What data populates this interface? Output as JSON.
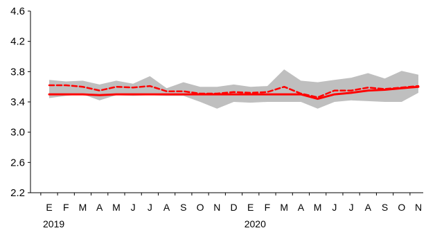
{
  "chart_data": {
    "type": "line",
    "title": "",
    "xlabel": "",
    "ylabel": "",
    "ylim": [
      2.2,
      4.6
    ],
    "yticks": [
      "2.2",
      "2.6",
      "3.0",
      "3.4",
      "3.8",
      "4.2",
      "4.6"
    ],
    "categories": [
      "E",
      "F",
      "M",
      "A",
      "M",
      "J",
      "J",
      "A",
      "S",
      "O",
      "N",
      "D",
      "E",
      "F",
      "M",
      "A",
      "M",
      "J",
      "J",
      "A",
      "S",
      "O",
      "N"
    ],
    "year_labels": [
      {
        "label": "2019",
        "category_index": 0
      },
      {
        "label": "2020",
        "category_index": 12
      }
    ],
    "grid": false,
    "legend": "none",
    "band": {
      "upper": [
        3.69,
        3.67,
        3.68,
        3.63,
        3.68,
        3.64,
        3.74,
        3.58,
        3.66,
        3.6,
        3.6,
        3.63,
        3.6,
        3.61,
        3.83,
        3.68,
        3.66,
        3.69,
        3.72,
        3.78,
        3.71,
        3.81,
        3.76
      ],
      "lower": [
        3.45,
        3.48,
        3.5,
        3.42,
        3.49,
        3.48,
        3.49,
        3.48,
        3.48,
        3.4,
        3.31,
        3.4,
        3.39,
        3.4,
        3.4,
        3.4,
        3.31,
        3.4,
        3.42,
        3.41,
        3.4,
        3.4,
        3.52
      ],
      "color": "#bfbfbf"
    },
    "series": [
      {
        "style": "solid",
        "color": "#ff0000",
        "values": [
          3.5,
          3.5,
          3.5,
          3.49,
          3.5,
          3.5,
          3.5,
          3.5,
          3.5,
          3.5,
          3.5,
          3.5,
          3.5,
          3.5,
          3.5,
          3.5,
          3.44,
          3.5,
          3.52,
          3.55,
          3.56,
          3.58,
          3.6
        ]
      },
      {
        "style": "dashed",
        "color": "#ff0000",
        "values": [
          3.62,
          3.62,
          3.6,
          3.55,
          3.6,
          3.59,
          3.61,
          3.54,
          3.54,
          3.51,
          3.51,
          3.53,
          3.52,
          3.53,
          3.6,
          3.51,
          3.46,
          3.55,
          3.55,
          3.59,
          3.57,
          3.59,
          3.61
        ]
      }
    ]
  }
}
